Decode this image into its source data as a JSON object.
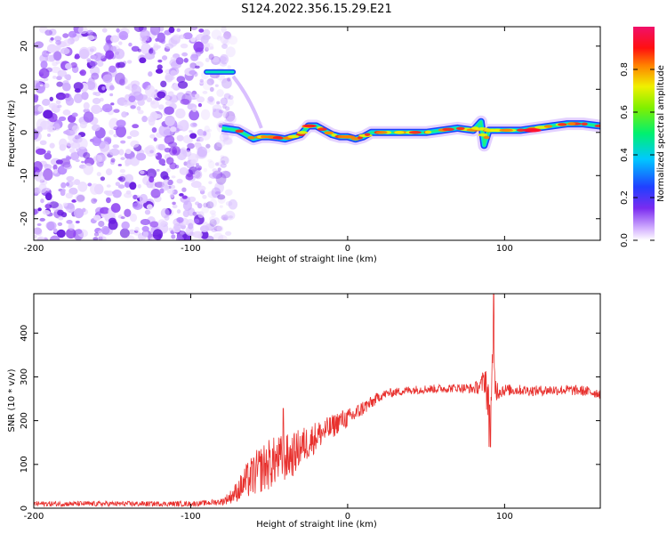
{
  "figure_title": "S124.2022.356.15.29.E21",
  "colors": {
    "snr_line": "#e8312e",
    "spectrogram_noise": "#8a3cf0",
    "spectrogram_signal": "#00e0c0"
  },
  "chart_data": [
    {
      "type": "heatmap",
      "title": "",
      "xlabel": "Height of straight line (km)",
      "ylabel": "Frequency (Hz)",
      "xlim": [
        -200,
        161
      ],
      "ylim": [
        -25,
        24.5
      ],
      "xticks": [
        "-200",
        "-100",
        "0",
        "100"
      ],
      "yticks": [
        "20",
        "10",
        "0",
        "-10",
        "-20"
      ],
      "colorbar": {
        "label": "Normalized spectral amplitude",
        "range": [
          0,
          1
        ],
        "ticks": [
          "0.0",
          "0.2",
          "0.4",
          "0.6",
          "0.8"
        ],
        "colormap": "rainbow (white-violet-blue-cyan-green-yellow-red-magenta)"
      },
      "features": {
        "noise_region_x": [
          -200,
          -79
        ],
        "noise_frequency_span_hz": [
          -25,
          24.5
        ],
        "short_line_at_14hz_x": [
          -90,
          -73
        ],
        "tracked_frequency_curve": {
          "x": [
            -80,
            -70,
            -60,
            -55,
            -50,
            -45,
            -40,
            -35,
            -30,
            -25,
            -20,
            -15,
            -10,
            -5,
            0,
            5,
            10,
            15,
            20,
            30,
            40,
            50,
            60,
            70,
            80,
            85,
            87,
            90,
            95,
            100,
            110,
            120,
            130,
            140,
            150,
            161
          ],
          "y": [
            1,
            0.5,
            -1.5,
            -1,
            -1,
            -1.2,
            -1.5,
            -1,
            -0.5,
            1.5,
            1.5,
            0.5,
            -0.5,
            -1,
            -1,
            -1.5,
            -1,
            0,
            0,
            0,
            0,
            0,
            0.5,
            1,
            0.5,
            2.5,
            -3,
            0.5,
            0.5,
            0.5,
            0.5,
            1,
            1.5,
            2,
            2,
            1.5
          ]
        },
        "peak_amplitude_near_x": [
          115,
          120
        ]
      }
    },
    {
      "type": "line",
      "title": "",
      "xlabel": "Height of straight line (km)",
      "ylabel": "SNR (10 * v/v)",
      "xlim": [
        -200,
        161
      ],
      "ylim": [
        0,
        490
      ],
      "xticks": [
        "-200",
        "-100",
        "0",
        "100"
      ],
      "yticks": [
        "0",
        "100",
        "200",
        "300",
        "400"
      ],
      "series": [
        {
          "x": [
            -200,
            -180,
            -160,
            -140,
            -120,
            -100,
            -90,
            -80,
            -75,
            -70,
            -65,
            -60,
            -55,
            -50,
            -45,
            -40,
            -35,
            -30,
            -25,
            -20,
            -15,
            -10,
            -5,
            0,
            5,
            10,
            15,
            20,
            25,
            30,
            40,
            50,
            60,
            70,
            80,
            85,
            88,
            90,
            92,
            95,
            100,
            110,
            120,
            130,
            140,
            150,
            161
          ],
          "y": [
            10,
            10,
            10,
            10,
            10,
            10,
            12,
            15,
            25,
            40,
            60,
            75,
            90,
            100,
            110,
            115,
            120,
            140,
            150,
            165,
            175,
            185,
            200,
            205,
            215,
            230,
            240,
            255,
            262,
            265,
            270,
            272,
            273,
            275,
            273,
            280,
            300,
            200,
            310,
            270,
            270,
            270,
            268,
            270,
            270,
            268,
            262
          ],
          "noise_amplitude": [
            6,
            6,
            6,
            6,
            6,
            6,
            6,
            8,
            15,
            25,
            40,
            50,
            55,
            60,
            55,
            55,
            50,
            45,
            40,
            35,
            30,
            28,
            25,
            22,
            20,
            18,
            15,
            12,
            10,
            10,
            10,
            10,
            10,
            10,
            12,
            20,
            40,
            80,
            80,
            25,
            14,
            12,
            12,
            12,
            12,
            12,
            12
          ],
          "spikes": [
            {
              "x": -41,
              "y": 228
            },
            {
              "x": 93,
              "y": 490
            },
            {
              "x": 91,
              "y": 140
            }
          ]
        }
      ]
    }
  ]
}
